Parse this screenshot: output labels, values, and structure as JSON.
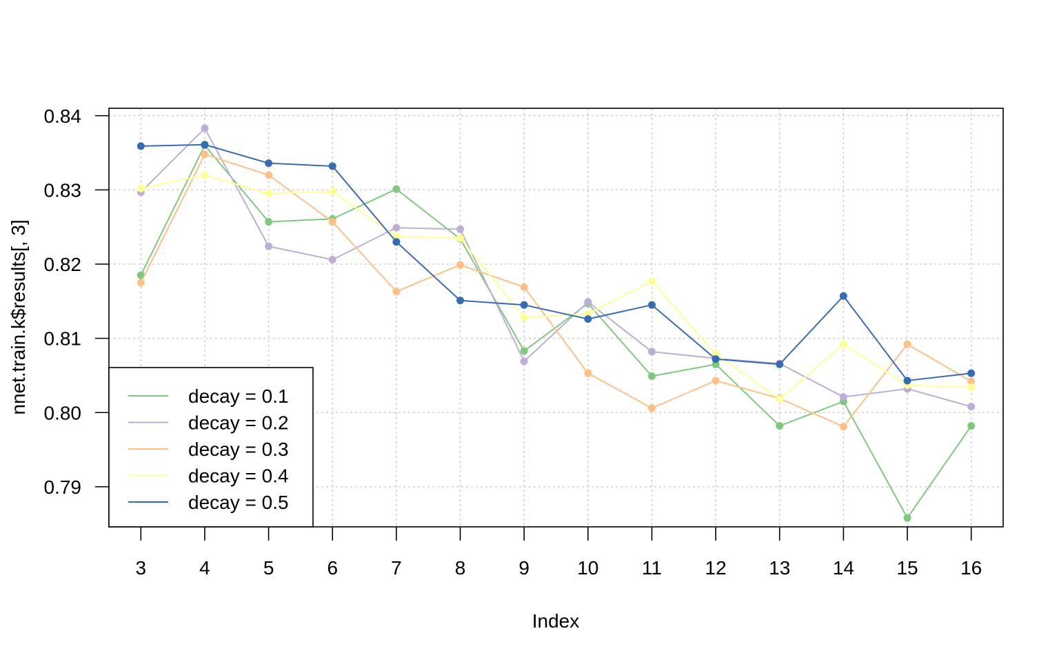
{
  "chart_data": {
    "type": "line",
    "title": "",
    "xlabel": "Index",
    "ylabel": "nnet.train.k$results[, 3]",
    "x": [
      3,
      4,
      5,
      6,
      7,
      8,
      9,
      10,
      11,
      12,
      13,
      14,
      15,
      16
    ],
    "x_ticks": [
      "3",
      "4",
      "5",
      "6",
      "7",
      "8",
      "9",
      "10",
      "11",
      "12",
      "13",
      "14",
      "15",
      "16"
    ],
    "y_ticks": [
      "0.79",
      "0.80",
      "0.81",
      "0.82",
      "0.83",
      "0.84"
    ],
    "xlim": [
      2.5,
      16.5
    ],
    "ylim": [
      0.7846,
      0.841
    ],
    "grid": true,
    "legend_position": "bottom-left",
    "series": [
      {
        "name": "decay = 0.1",
        "color": "#7fc97f",
        "values": [
          0.8185,
          0.836,
          0.8257,
          0.8261,
          0.8301,
          0.8234,
          0.8083,
          0.8147,
          0.8049,
          0.8065,
          0.7982,
          0.8015,
          0.7858,
          0.7982
        ]
      },
      {
        "name": "decay = 0.2",
        "color": "#beaed4",
        "values": [
          0.8297,
          0.8383,
          0.8224,
          0.8206,
          0.8249,
          0.8247,
          0.8069,
          0.8149,
          0.8082,
          0.8073,
          0.8066,
          0.8021,
          0.8032,
          0.8008
        ]
      },
      {
        "name": "decay = 0.3",
        "color": "#fdc086",
        "values": [
          0.8175,
          0.8348,
          0.832,
          0.8257,
          0.8163,
          0.8199,
          0.8169,
          0.8053,
          0.8006,
          0.8043,
          0.8019,
          0.7981,
          0.8092,
          0.8042
        ]
      },
      {
        "name": "decay = 0.4",
        "color": "#ffff99",
        "values": [
          0.8302,
          0.832,
          0.8295,
          0.8298,
          0.8237,
          0.8235,
          0.8128,
          0.8133,
          0.8177,
          0.8079,
          0.8018,
          0.8092,
          0.8037,
          0.8034
        ]
      },
      {
        "name": "decay = 0.5",
        "color": "#386cb0",
        "values": [
          0.8359,
          0.8361,
          0.8336,
          0.8332,
          0.823,
          0.8151,
          0.8145,
          0.8126,
          0.8145,
          0.8072,
          0.8065,
          0.8157,
          0.8043,
          0.8053
        ]
      }
    ]
  }
}
